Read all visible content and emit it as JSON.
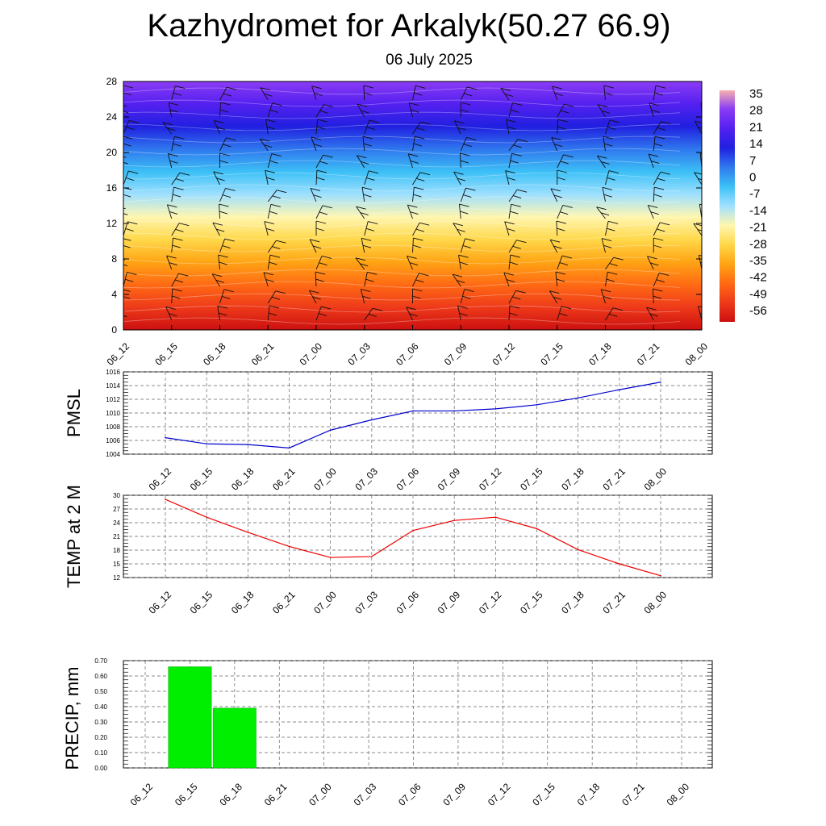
{
  "header": {
    "title": "Kazhydromet for Arkalyk(50.27 66.9)",
    "date": "06 July 2025"
  },
  "chart_data": [
    {
      "type": "heatmap",
      "name": "temperature-cross-section",
      "x_tick_labels": [
        "06_12",
        "06_15",
        "06_18",
        "06_21",
        "07_00",
        "07_03",
        "07_06",
        "07_09",
        "07_12",
        "07_15",
        "07_18",
        "07_21",
        "08_00"
      ],
      "y_ticks": [
        0,
        4,
        8,
        12,
        16,
        20,
        24,
        28
      ],
      "ylim": [
        0,
        28
      ],
      "colorbar_labels": [
        "35",
        "28",
        "21",
        "14",
        "7",
        "0",
        "-7",
        "-14",
        "-21",
        "-28",
        "-35",
        "-42",
        "-49",
        "-56"
      ],
      "colors": {
        "stops": [
          "#cc1010",
          "#ee3a1a",
          "#ff6a14",
          "#ffa414",
          "#ffd84a",
          "#fff6b0",
          "#9fe0ff",
          "#3cc0f6",
          "#2f78ee",
          "#2020e0",
          "#5520f0",
          "#8a3cf4"
        ],
        "colorbar_top": "#f7b0b0",
        "colorbar_bottom": "#8a3cf4"
      }
    },
    {
      "type": "line",
      "name": "pmsl",
      "ylabel": "PMSL",
      "x": [
        "06_12",
        "06_15",
        "06_18",
        "06_21",
        "07_00",
        "07_03",
        "07_06",
        "07_09",
        "07_12",
        "07_15",
        "07_18",
        "07_21",
        "08_00"
      ],
      "values": [
        1006.4,
        1005.5,
        1005.4,
        1004.9,
        1007.5,
        1009.0,
        1010.3,
        1010.3,
        1010.6,
        1011.2,
        1012.2,
        1013.4,
        1014.5
      ],
      "ylim": [
        1004,
        1016
      ],
      "y_ticks": [
        1004,
        1006,
        1008,
        1010,
        1012,
        1014,
        1016
      ],
      "color": "#0000cc"
    },
    {
      "type": "line",
      "name": "temp-2m",
      "ylabel": "TEMP at 2 M",
      "x": [
        "06_12",
        "06_15",
        "06_18",
        "06_21",
        "07_00",
        "07_03",
        "07_06",
        "07_09",
        "07_12",
        "07_15",
        "07_18",
        "07_21",
        "08_00"
      ],
      "values": [
        29.1,
        25.2,
        21.9,
        18.8,
        16.4,
        16.6,
        22.3,
        24.5,
        25.2,
        22.7,
        18.1,
        15.0,
        12.4
      ],
      "ylim": [
        12,
        30
      ],
      "y_ticks": [
        12,
        15,
        18,
        21,
        24,
        27,
        30
      ],
      "color": "#ee0000"
    },
    {
      "type": "bar",
      "name": "precip",
      "ylabel": "PRECIP, mm",
      "categories": [
        "06_12",
        "06_15",
        "06_18",
        "06_21",
        "07_00",
        "07_03",
        "07_06",
        "07_09",
        "07_12",
        "07_15",
        "07_18",
        "07_21",
        "08_00"
      ],
      "values": [
        0,
        0.66,
        0.39,
        0,
        0,
        0,
        0,
        0,
        0,
        0,
        0,
        0,
        0
      ],
      "ylim": [
        0,
        0.7
      ],
      "y_ticks": [
        "0.00",
        "0.10",
        "0.20",
        "0.30",
        "0.40",
        "0.50",
        "0.60",
        "0.70"
      ],
      "color": "#00ee00"
    }
  ]
}
